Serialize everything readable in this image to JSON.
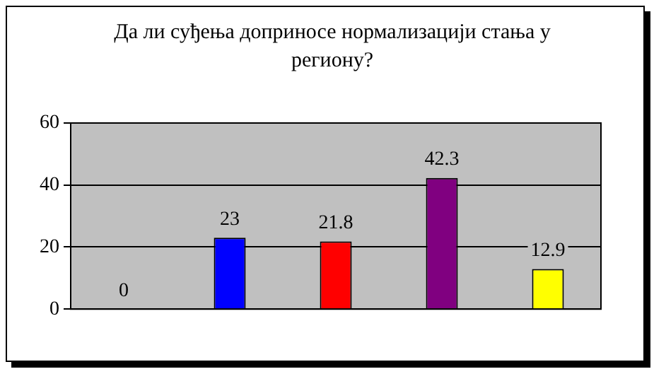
{
  "chart_data": {
    "type": "bar",
    "title": "Да ли суђења доприносе нормализацији стања у региону?",
    "categories": [
      null,
      null,
      null,
      null,
      null
    ],
    "values": [
      0,
      23,
      21.8,
      42.3,
      12.9
    ],
    "colors": [
      "#993366",
      "#0000ff",
      "#ff0000",
      "#800080",
      "#ffff00"
    ],
    "ylim": [
      0,
      60
    ],
    "yticks": [
      0,
      20,
      40,
      60
    ],
    "grid": "y",
    "data_labels": true,
    "legend": false
  }
}
